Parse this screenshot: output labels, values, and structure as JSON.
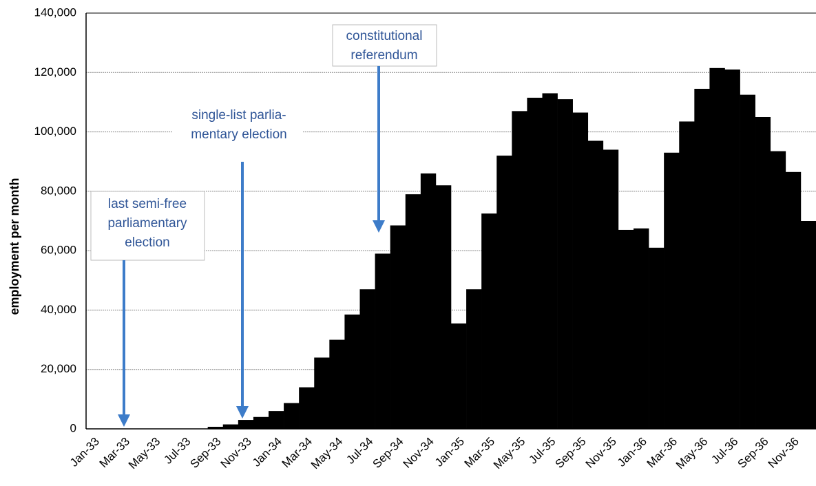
{
  "chart_data": {
    "type": "bar",
    "y_label": "employment per month",
    "categories": [
      "Jan-33",
      null,
      "Mar-33",
      null,
      "May-33",
      null,
      "Jul-33",
      null,
      "Sep-33",
      null,
      "Nov-33",
      null,
      "Jan-34",
      null,
      "Mar-34",
      null,
      "May-34",
      null,
      "Jul-34",
      null,
      "Sep-34",
      null,
      "Nov-34",
      null,
      "Jan-35",
      null,
      "Mar-35",
      null,
      "May-35",
      null,
      "Jul-35",
      null,
      "Sep-35",
      null,
      "Nov-35",
      null,
      "Jan-36",
      null,
      "Mar-36",
      null,
      "May-36",
      null,
      "Jul-36",
      null,
      "Sep-36",
      null,
      "Nov-36",
      null
    ],
    "values": [
      0,
      0,
      0,
      0,
      0,
      0,
      0,
      0,
      700,
      1500,
      3000,
      4000,
      6000,
      8700,
      14000,
      24000,
      30000,
      38500,
      47000,
      59000,
      68500,
      79000,
      86000,
      82000,
      35500,
      47000,
      72500,
      92000,
      107000,
      111500,
      113000,
      111000,
      106500,
      97000,
      94000,
      67000,
      67500,
      61000,
      93000,
      103500,
      114500,
      121500,
      121000,
      112500,
      105000,
      93500,
      86500,
      70000
    ],
    "color": "#000000",
    "ylim": [
      0,
      140000
    ],
    "yticks": [
      0,
      {
        "value": 20000,
        "label": "20,000"
      },
      {
        "value": 40000,
        "label": "40,000"
      },
      {
        "value": 60000,
        "label": "60,000"
      },
      {
        "value": 80000,
        "label": "80,000"
      },
      {
        "value": 100000,
        "label": "100,000"
      },
      {
        "value": 120000,
        "label": "120,000"
      },
      {
        "value": 140000,
        "label": "140,000"
      }
    ],
    "grid": true,
    "annotations": [
      {
        "lines": [
          "last semi-free",
          "parliamentary",
          "election"
        ]
      },
      {
        "lines": [
          "single-list parlia-",
          "mentary election"
        ]
      },
      {
        "lines": [
          "constitutional",
          "referendum"
        ]
      }
    ]
  }
}
